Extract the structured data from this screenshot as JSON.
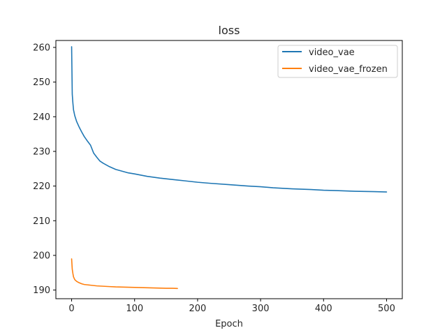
{
  "chart_data": {
    "type": "line",
    "title": "loss",
    "xlabel": "Epoch",
    "ylabel": "",
    "xlim": [
      -25,
      525
    ],
    "ylim": [
      187.5,
      262
    ],
    "xticks": [
      0,
      100,
      200,
      300,
      400,
      500
    ],
    "yticks": [
      190,
      200,
      210,
      220,
      230,
      240,
      250,
      260
    ],
    "grid": false,
    "legend_position": "top-right",
    "series": [
      {
        "name": "video_vae",
        "color": "#1f77b4",
        "x": [
          0,
          1,
          2,
          3,
          5,
          8,
          12,
          16,
          20,
          25,
          30,
          35,
          40,
          45,
          50,
          60,
          70,
          80,
          90,
          100,
          120,
          140,
          160,
          180,
          200,
          220,
          250,
          280,
          300,
          320,
          350,
          380,
          400,
          420,
          450,
          480,
          500
        ],
        "y": [
          260.2,
          246.5,
          244.0,
          242.0,
          240.3,
          238.6,
          237.0,
          235.6,
          234.3,
          233.0,
          231.8,
          229.5,
          228.3,
          227.2,
          226.6,
          225.6,
          224.8,
          224.3,
          223.8,
          223.5,
          222.8,
          222.3,
          221.9,
          221.5,
          221.1,
          220.8,
          220.4,
          220.0,
          219.8,
          219.5,
          219.2,
          219.0,
          218.8,
          218.7,
          218.5,
          218.4,
          218.3
        ]
      },
      {
        "name": "video_vae_frozen",
        "color": "#ff7f0e",
        "x": [
          0,
          1,
          2,
          3,
          5,
          8,
          12,
          16,
          20,
          25,
          30,
          40,
          50,
          60,
          70,
          80,
          90,
          100,
          110,
          120,
          130,
          140,
          150,
          160,
          168
        ],
        "y": [
          199.0,
          196.0,
          194.8,
          193.8,
          193.0,
          192.5,
          192.1,
          191.8,
          191.6,
          191.5,
          191.4,
          191.2,
          191.1,
          191.0,
          190.9,
          190.85,
          190.8,
          190.75,
          190.7,
          190.65,
          190.6,
          190.55,
          190.5,
          190.5,
          190.45
        ]
      }
    ]
  }
}
